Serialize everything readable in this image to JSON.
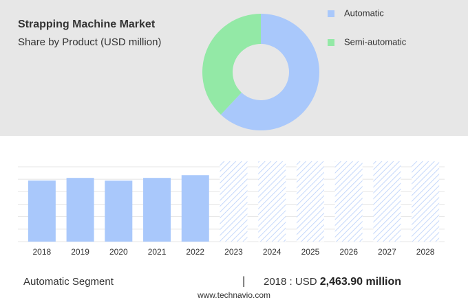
{
  "chart_data": [
    {
      "type": "pie",
      "title": "Strapping Machine Market",
      "subtitle": "Share by Product (USD million)",
      "categories": [
        "Automatic",
        "Semi-automatic"
      ],
      "values": [
        62,
        38
      ],
      "colors": [
        "#a9c8fb",
        "#93e9a6"
      ],
      "donut": true
    },
    {
      "type": "bar",
      "categories": [
        "2018",
        "2019",
        "2020",
        "2021",
        "2022",
        "2023",
        "2024",
        "2025",
        "2026",
        "2027",
        "2028"
      ],
      "values": [
        2463.9,
        2570,
        2460,
        2570,
        2680,
        null,
        null,
        null,
        null,
        null,
        null
      ],
      "color": "#a9c8fb",
      "ylim": [
        0,
        3240
      ],
      "grid": true
    }
  ],
  "footer": {
    "segment": "Automatic Segment",
    "separator": "|",
    "year_label": "2018 : USD",
    "value_label": "2,463.90 million",
    "source": "www.technavio.com"
  }
}
